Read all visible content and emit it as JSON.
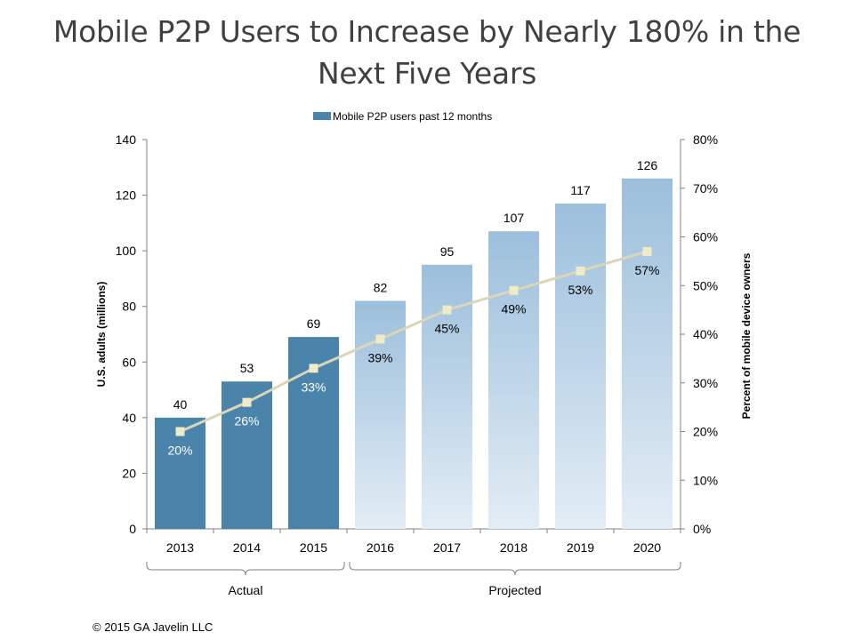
{
  "slide": {
    "title_line1": "Mobile P2P Users to Increase by Nearly 180% in the",
    "title_line2": "Next Five Years",
    "copyright": "© 2015 GA Javelin LLC"
  },
  "chart_data": {
    "type": "bar",
    "categories": [
      "2013",
      "2014",
      "2015",
      "2016",
      "2017",
      "2018",
      "2019",
      "2020"
    ],
    "series": [
      {
        "name": "Mobile P2P users past 12 months",
        "values": [
          40,
          53,
          69,
          82,
          95,
          107,
          117,
          126
        ],
        "labels": [
          "40",
          "53",
          "69",
          "82",
          "95",
          "107",
          "117",
          "126"
        ],
        "axis": "left"
      },
      {
        "values": [
          20,
          26,
          33,
          39,
          45,
          49,
          53,
          57
        ],
        "labels": [
          "20%",
          "26%",
          "33%",
          "39%",
          "45%",
          "49%",
          "53%",
          "57%"
        ],
        "axis": "right",
        "type": "line"
      }
    ],
    "ylabel": "U.S. adults (millions)",
    "ylim": [
      0,
      140
    ],
    "yticks": [
      "0",
      "20",
      "40",
      "60",
      "80",
      "100",
      "120",
      "140"
    ],
    "y2label": "Percent of mobile device owners",
    "y2lim": [
      0,
      80
    ],
    "y2ticks": [
      "0%",
      "10%",
      "20%",
      "30%",
      "40%",
      "50%",
      "60%",
      "70%",
      "80%"
    ],
    "groups": [
      {
        "label": "Actual",
        "categories": [
          "2013",
          "2014",
          "2015"
        ]
      },
      {
        "label": "Projected",
        "categories": [
          "2016",
          "2017",
          "2018",
          "2019",
          "2020"
        ]
      }
    ],
    "actual_count": 3,
    "legend_position": "top-center",
    "grid": false,
    "colors": {
      "actual_bar": "#4a84aa",
      "projected_top": "#9cbfdc",
      "projected_bottom": "#e3edf5",
      "line": "#dbd6b8",
      "marker": "#efebc8",
      "axis": "#808080"
    }
  }
}
